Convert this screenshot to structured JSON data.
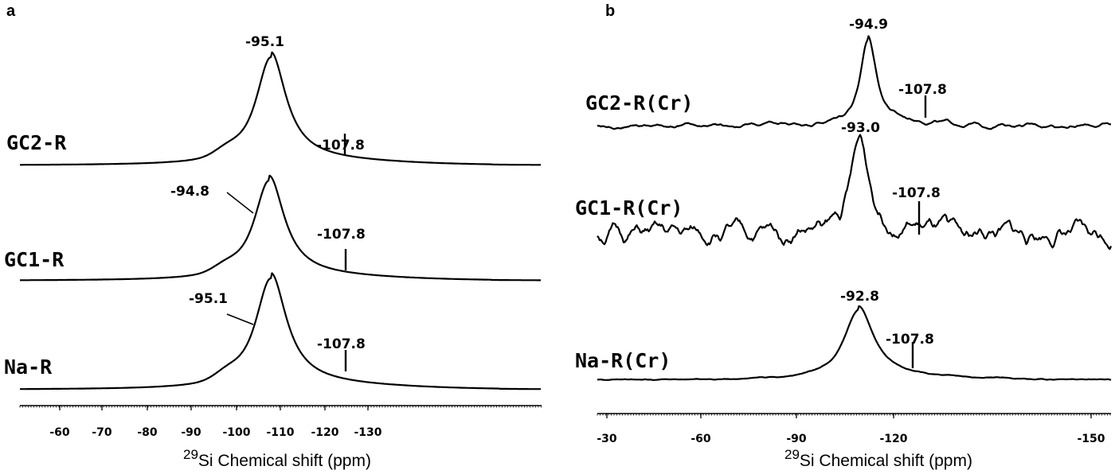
{
  "chart_data": [
    {
      "type": "line",
      "panel": "a",
      "xlabel_sup": "29",
      "xlabel": "Si Chemical shift (ppm)",
      "xticks": [
        "-60",
        "-70",
        "-80",
        "-90",
        "-100",
        "-110",
        "-120",
        "-130"
      ],
      "series": [
        {
          "name": "GC2-R",
          "peak": -95.1,
          "peak_label": "-95.1",
          "marker": -107.8,
          "marker_label": "-107.8",
          "width": 3.2,
          "noise": 0
        },
        {
          "name": "GC1-R",
          "peak": -94.8,
          "peak_label": "-94.8",
          "marker": -107.8,
          "marker_label": "-107.8",
          "width": 3.2,
          "noise": 0
        },
        {
          "name": "Na-R",
          "peak": -95.1,
          "peak_label": "-95.1",
          "marker": -107.8,
          "marker_label": "-107.8",
          "width": 3.3,
          "noise": 0
        }
      ]
    },
    {
      "type": "line",
      "panel": "b",
      "xlabel_sup": "29",
      "xlabel": "Si Chemical shift (ppm)",
      "xticks": [
        "-30",
        "-60",
        "-90",
        "-120",
        "-150"
      ],
      "series": [
        {
          "name": "GC2-R(Cr)",
          "peak": -94.9,
          "peak_label": "-94.9",
          "marker": -107.8,
          "marker_label": "-107.8",
          "width": 2.2,
          "noise": 0.03
        },
        {
          "name": "GC1-R(Cr)",
          "peak": -93.0,
          "peak_label": "-93.0",
          "marker": -107.8,
          "marker_label": "-107.8",
          "width": 2.6,
          "noise": 0.12
        },
        {
          "name": "Na-R(Cr)",
          "peak": -92.8,
          "peak_label": "-92.8",
          "marker": -107.8,
          "marker_label": "-107.8",
          "width": 4.0,
          "noise": 0.01
        }
      ]
    }
  ],
  "panels": {
    "a": "a",
    "b": "b"
  }
}
